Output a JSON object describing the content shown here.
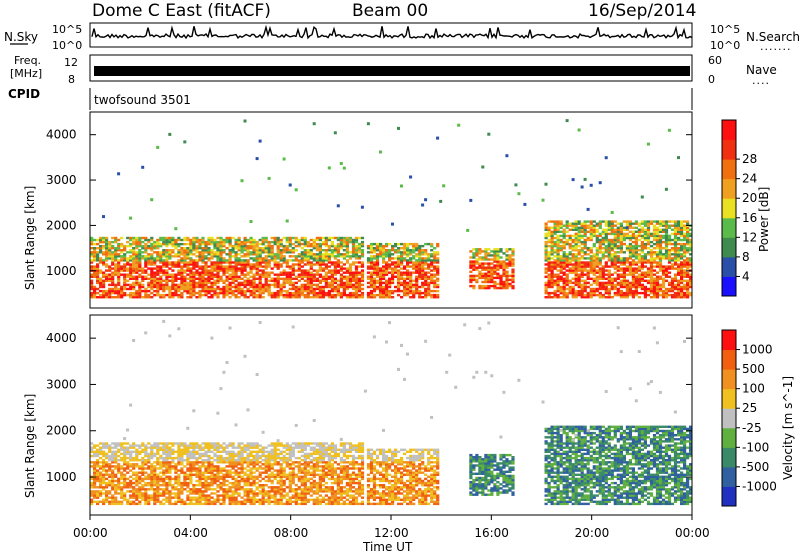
{
  "header": {
    "station": "Dome C East (fitACF)",
    "beam": "Beam 00",
    "date": "16/Sep/2014"
  },
  "noise_panel": {
    "left_label": "N.Sky",
    "right_label": "N.Search",
    "right_dots": ".......",
    "left_ticks": [
      "10^5",
      "10^0"
    ],
    "right_ticks": [
      "10^5",
      "10^0"
    ]
  },
  "freq_panel": {
    "left_label_line1": "Freq.",
    "left_label_line2": "[MHz]",
    "right_label": "Nave",
    "right_dots": "....",
    "left_ticks": [
      "12",
      "8"
    ],
    "right_ticks": [
      "60",
      "0"
    ]
  },
  "cpid_panel": {
    "label": "CPID",
    "program": "twofsound 3501"
  },
  "chart_data": [
    {
      "type": "heatmap",
      "name": "power",
      "ylabel": "Slant Range [km]",
      "xlabel": "Time UT",
      "ylim": [
        180,
        4500
      ],
      "xlim_hours": [
        0,
        24
      ],
      "y_ticks": [
        1000,
        2000,
        3000,
        4000
      ],
      "colorbar_label": "Power [dB]",
      "colorbar_ticks": [
        "4",
        "8",
        "12",
        "16",
        "20",
        "24",
        "28"
      ],
      "colorbar_colors": [
        "#1a10ff",
        "#2a4fa8",
        "#3f8a4f",
        "#5abb4a",
        "#e8e020",
        "#f0a020",
        "#f07010",
        "#f03010",
        "#ff1010"
      ],
      "echo_bands": [
        {
          "t0": 0.0,
          "t1": 10.8,
          "r0": 400,
          "r1": 1750
        },
        {
          "t0": 11.0,
          "t1": 13.9,
          "r0": 400,
          "r1": 1600
        },
        {
          "t0": 15.0,
          "t1": 16.8,
          "r0": 600,
          "r1": 1500
        },
        {
          "t0": 18.0,
          "t1": 24.0,
          "r0": 400,
          "r1": 2100
        }
      ]
    },
    {
      "type": "heatmap",
      "name": "velocity",
      "ylabel": "Slant Range [km]",
      "xlabel": "Time UT",
      "ylim": [
        180,
        4500
      ],
      "xlim_hours": [
        0,
        24
      ],
      "y_ticks": [
        1000,
        2000,
        3000,
        4000
      ],
      "colorbar_label": "Velocity [m s^-1]",
      "colorbar_ticks": [
        "1000",
        "500",
        "100",
        "25",
        "-25",
        "-100",
        "-500",
        "-1000"
      ],
      "colorbar_colors": [
        "#2030c0",
        "#3060a0",
        "#3a8a6a",
        "#60b040",
        "#c0c0c0",
        "#f0c020",
        "#f09020",
        "#f06010",
        "#ff1010"
      ]
    }
  ],
  "time_axis": {
    "labels": [
      "00:00",
      "04:00",
      "08:00",
      "12:00",
      "16:00",
      "20:00",
      "00:00"
    ],
    "title": "Time UT"
  }
}
